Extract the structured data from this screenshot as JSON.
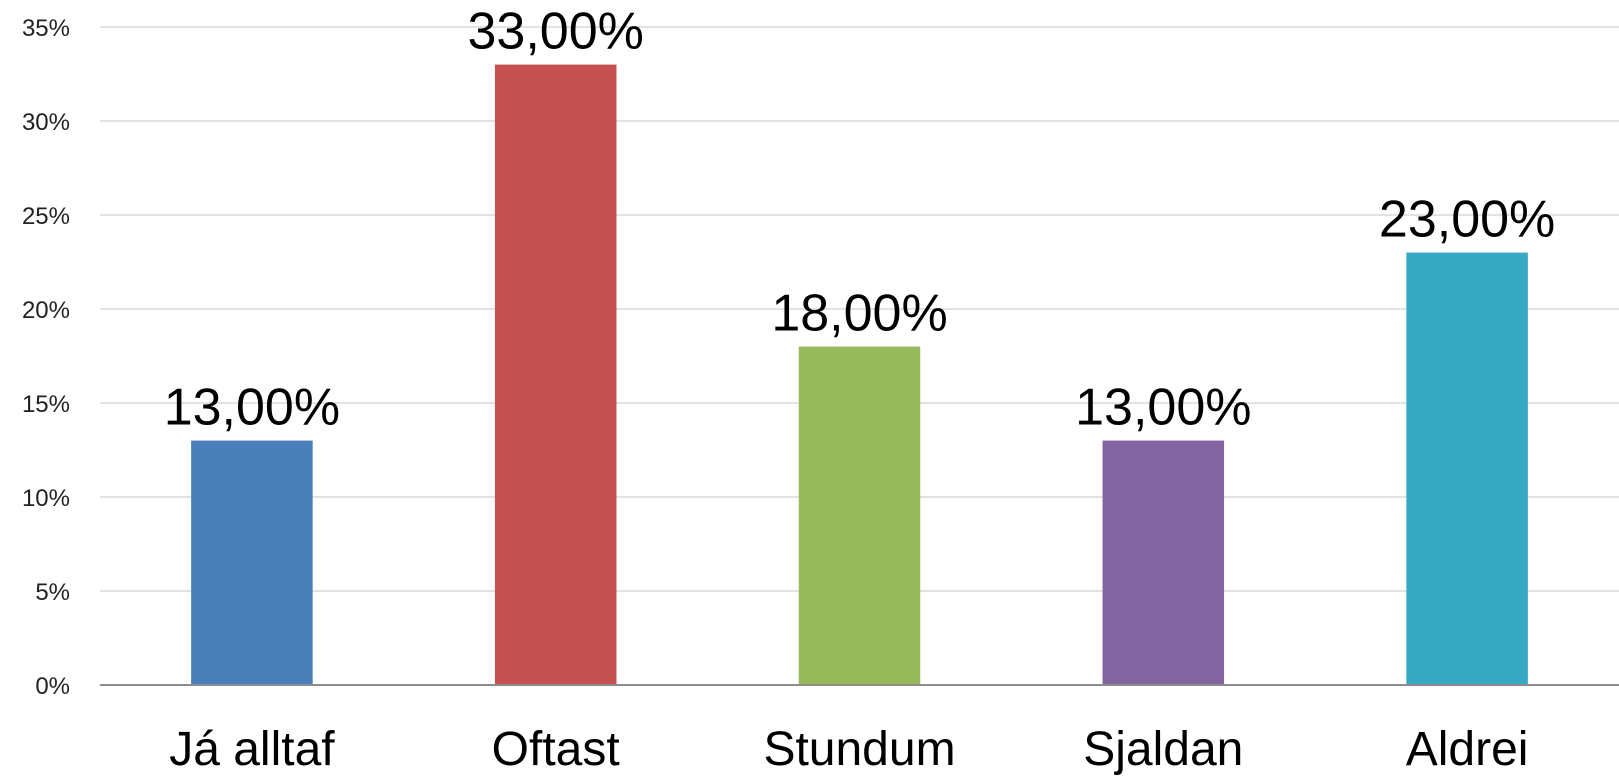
{
  "chart_data": {
    "type": "bar",
    "categories": [
      "Já alltaf",
      "Oftast",
      "Stundum",
      "Sjaldan",
      "Aldrei"
    ],
    "values": [
      13,
      33,
      18,
      13,
      23
    ],
    "data_labels": [
      "13,00%",
      "33,00%",
      "18,00%",
      "13,00%",
      "23,00%"
    ],
    "colors": [
      "#4a7eb8",
      "#c4504f",
      "#97b95a",
      "#8164a0",
      "#37a9c2"
    ],
    "ylim": [
      0,
      35
    ],
    "yticks": [
      0,
      5,
      10,
      15,
      20,
      25,
      30,
      35
    ],
    "ytick_labels": [
      "0%",
      "5%",
      "10%",
      "15%",
      "20%",
      "25%",
      "30%",
      "35%"
    ],
    "grid": true,
    "legend": "none",
    "title": "",
    "xlabel": "",
    "ylabel": ""
  }
}
